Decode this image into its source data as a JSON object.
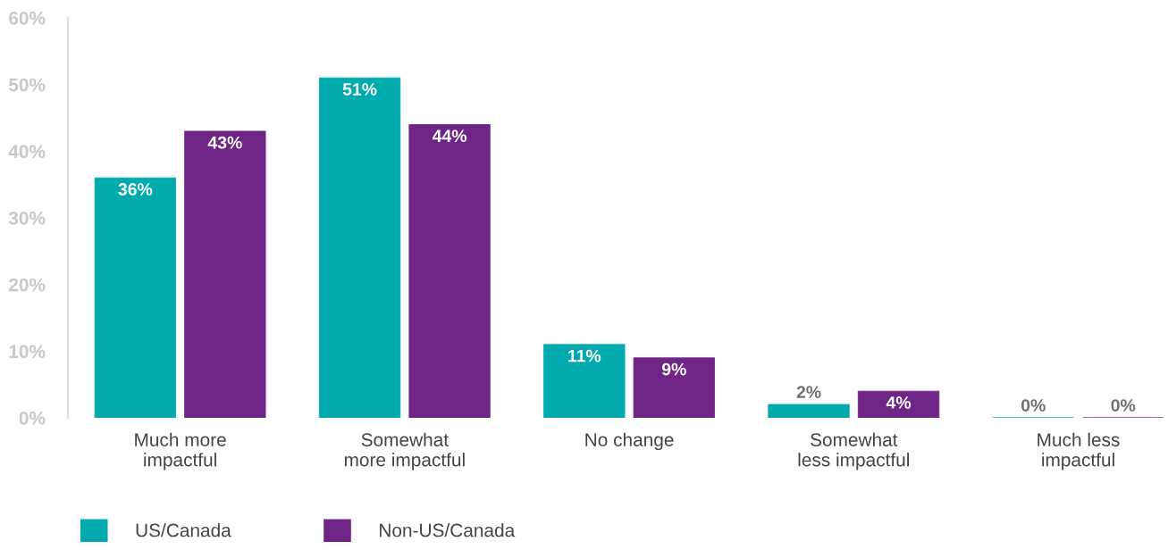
{
  "chart_data": {
    "type": "bar",
    "categories": [
      "Much more\nimpactful",
      "Somewhat\nmore impactful",
      "No change",
      "Somewhat\nless impactful",
      "Much less\nimpactful"
    ],
    "series": [
      {
        "name": "US/Canada",
        "color": "#00aaad",
        "values": [
          36,
          51,
          11,
          2,
          0
        ],
        "value_labels": [
          "36%",
          "51%",
          "11%",
          "2%",
          "0%"
        ]
      },
      {
        "name": "Non-US/Canada",
        "color": "#6e2585",
        "values": [
          43,
          44,
          9,
          4,
          0
        ],
        "value_labels": [
          "43%",
          "44%",
          "9%",
          "4%",
          "0%"
        ]
      }
    ],
    "ylim": [
      0,
      60
    ],
    "yticks": [
      {
        "value": 0,
        "label": "0%"
      },
      {
        "value": 10,
        "label": "10%"
      },
      {
        "value": 20,
        "label": "20%"
      },
      {
        "value": 30,
        "label": "30%"
      },
      {
        "value": 40,
        "label": "40%"
      },
      {
        "value": 50,
        "label": "50%"
      },
      {
        "value": 60,
        "label": "60%"
      }
    ],
    "grid": false,
    "legend": "bottom left"
  }
}
